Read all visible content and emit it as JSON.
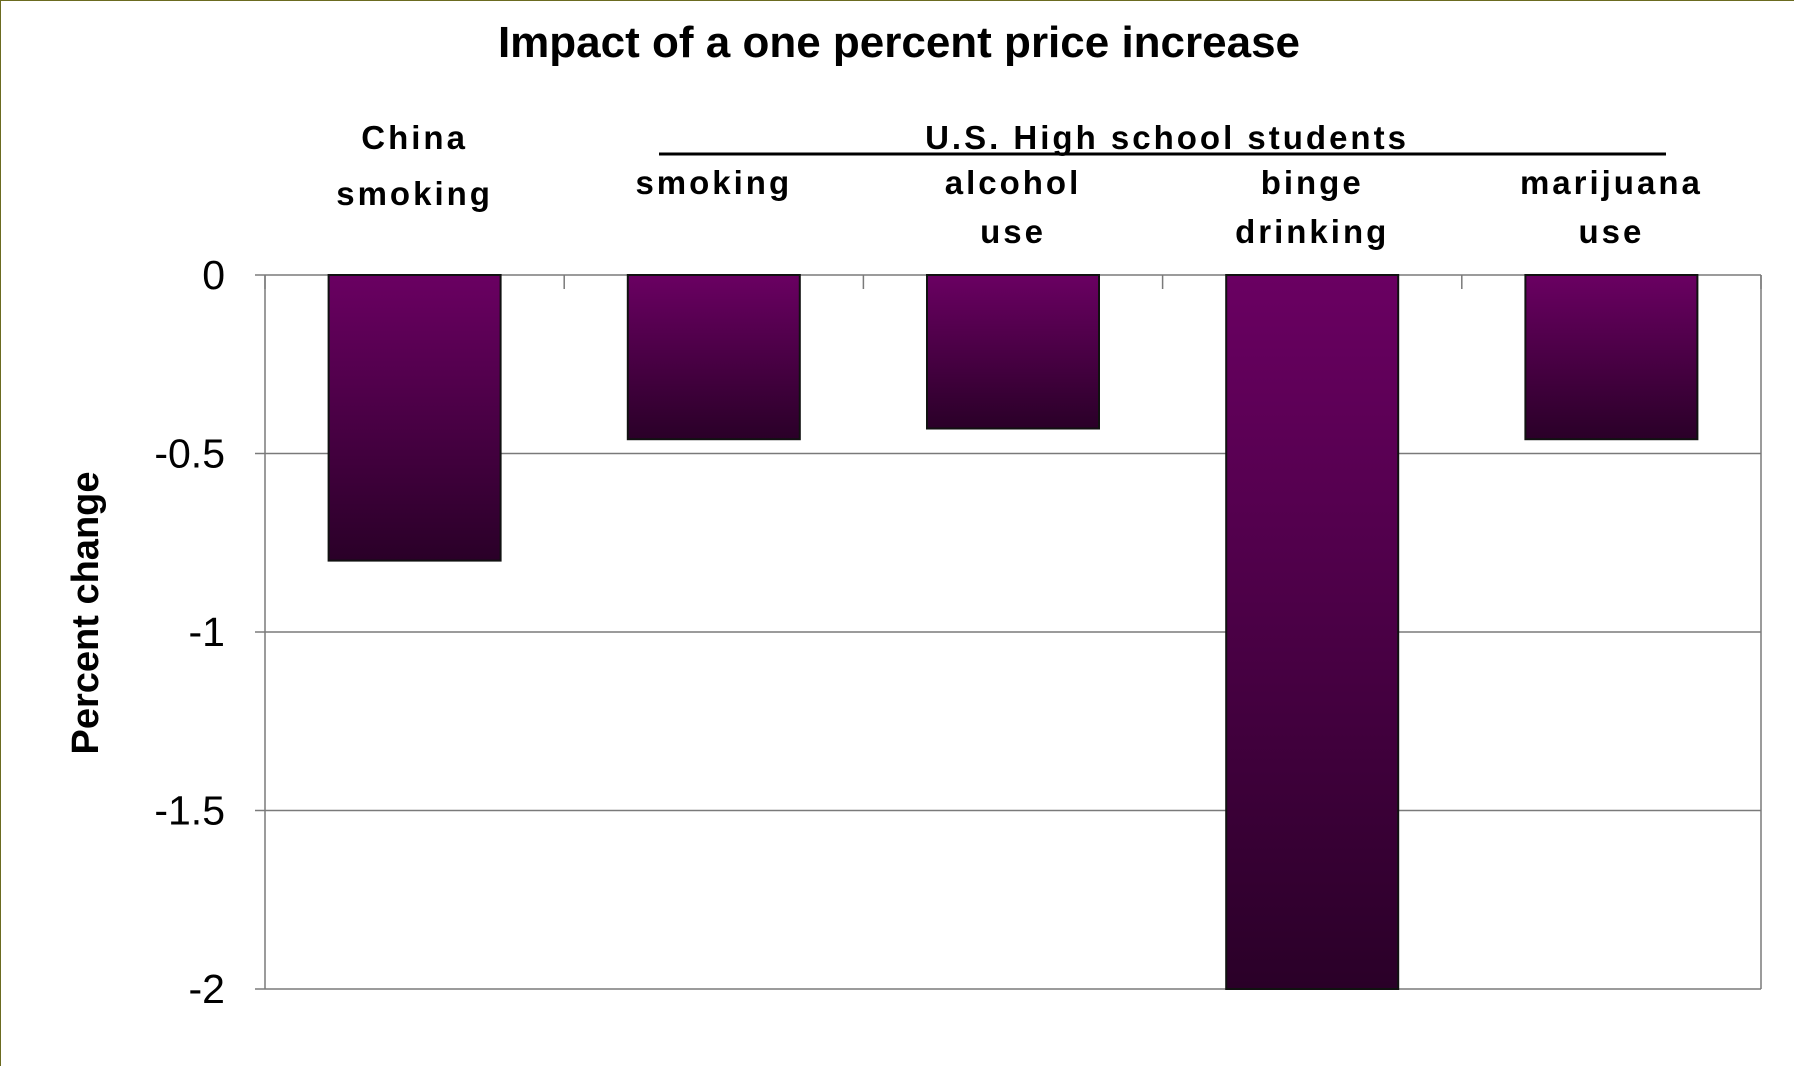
{
  "chart_data": {
    "type": "bar",
    "title": "Impact of a one percent price increase",
    "ylabel": "Percent change",
    "xlabel": "",
    "ylim": [
      -2,
      0
    ],
    "yticks": [
      "0",
      "-0.5",
      "-1",
      "-1.5",
      "-2"
    ],
    "ytick_values": [
      0,
      -0.5,
      -1,
      -1.5,
      -2
    ],
    "group_label": "U.S. High school students",
    "categories": [
      [
        "China",
        "smoking"
      ],
      [
        "smoking"
      ],
      [
        "alcohol",
        "use"
      ],
      [
        "binge",
        "drinking"
      ],
      [
        "marijuana",
        "use"
      ]
    ],
    "values": [
      -0.8,
      -0.46,
      -0.43,
      -2.0,
      -0.46
    ],
    "grid": true,
    "bar_color_top": "#6a0062",
    "bar_color_bottom": "#2a0028",
    "bar_outline": "#111111",
    "frame_color": "#6b6b20"
  }
}
